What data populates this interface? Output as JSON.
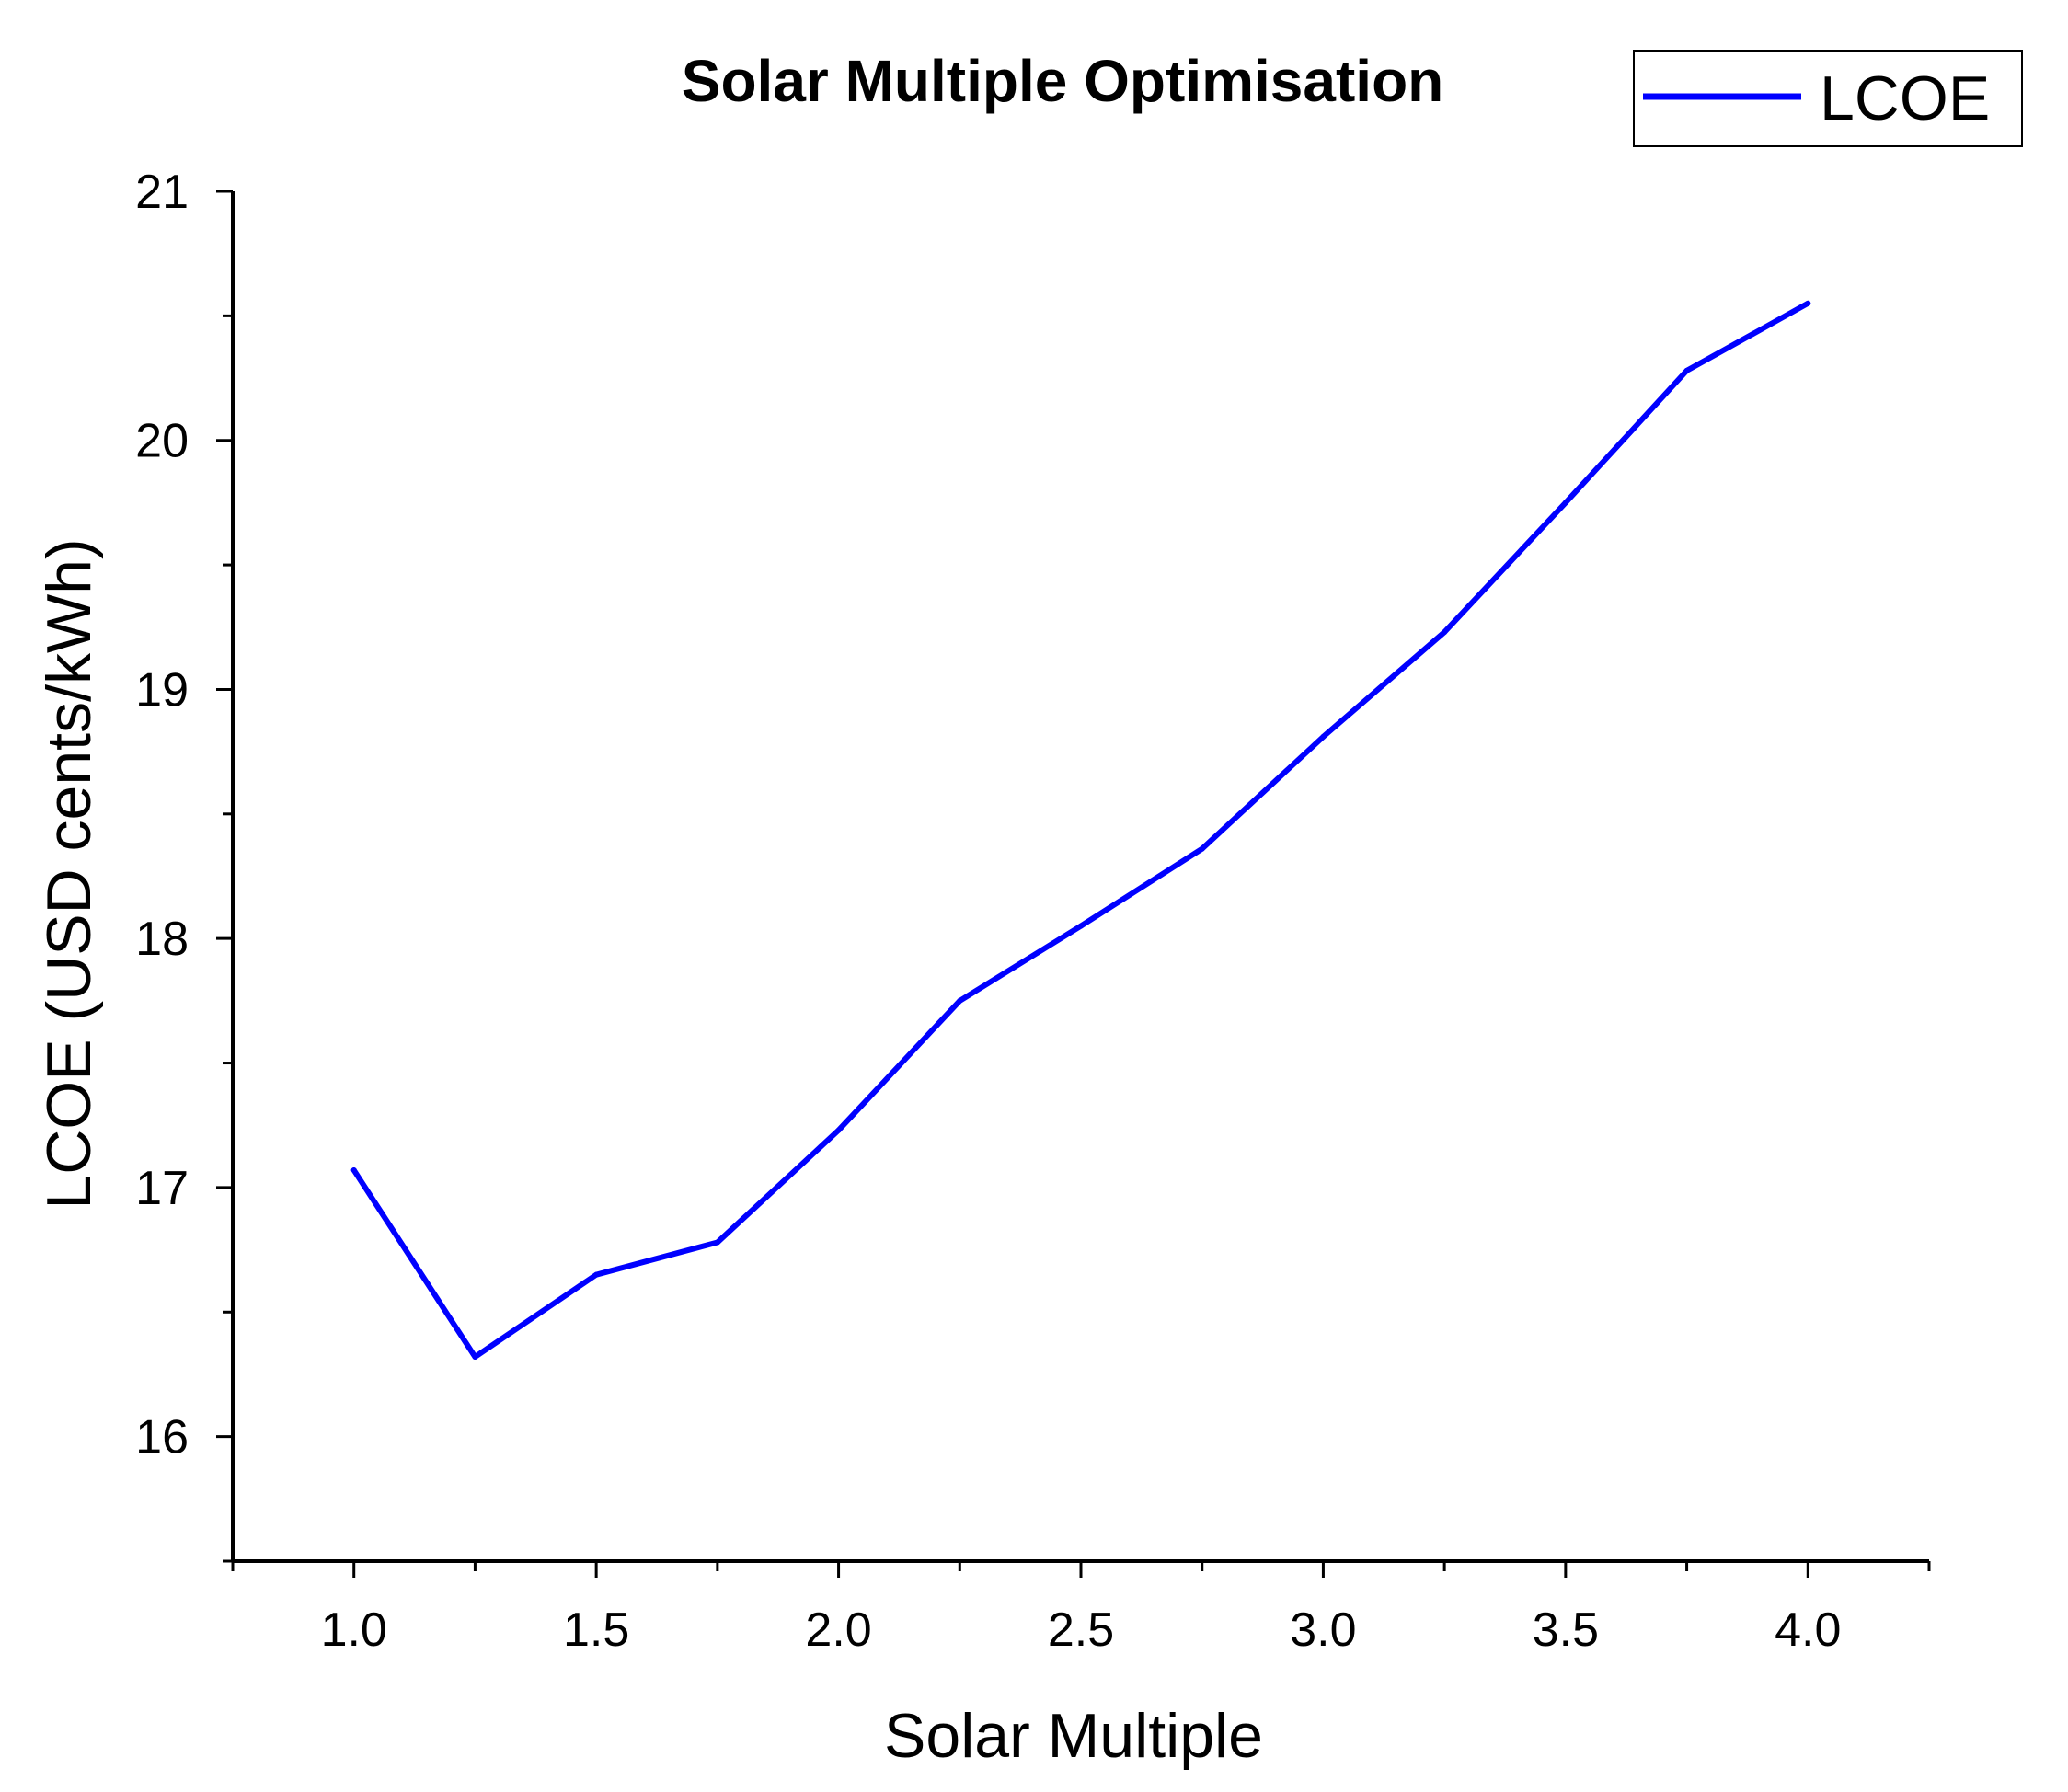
{
  "chart_data": {
    "type": "line",
    "title": "Solar Multiple Optimisation",
    "xlabel": "Solar Multiple",
    "ylabel": "LCOE (USD cents/kWh)",
    "xlim": [
      0.75,
      4.25
    ],
    "ylim": [
      15.5,
      21
    ],
    "x_ticks": [
      1.0,
      1.5,
      2.0,
      2.5,
      3.0,
      3.5,
      4.0
    ],
    "x_tick_labels": [
      "1.0",
      "1.5",
      "2.0",
      "2.5",
      "3.0",
      "3.5",
      "4.0"
    ],
    "x_minor_ticks": [
      0.75,
      1.25,
      1.75,
      2.25,
      2.75,
      3.25,
      3.75,
      4.25
    ],
    "y_ticks": [
      16,
      17,
      18,
      19,
      20,
      21
    ],
    "y_tick_labels": [
      "16",
      "17",
      "18",
      "19",
      "20",
      "21"
    ],
    "y_minor_ticks": [
      15.5,
      16.5,
      17.5,
      18.5,
      19.5,
      20.5
    ],
    "grid": false,
    "legend_position": "top-right",
    "series": [
      {
        "name": "LCOE",
        "color": "#0000ff",
        "x": [
          1.0,
          1.25,
          1.5,
          1.75,
          2.0,
          2.25,
          2.5,
          2.75,
          3.0,
          3.25,
          3.5,
          3.75,
          4.0
        ],
        "values": [
          17.07,
          16.32,
          16.65,
          16.78,
          17.23,
          17.75,
          18.05,
          18.36,
          18.81,
          19.23,
          19.75,
          20.28,
          20.55
        ]
      }
    ]
  }
}
